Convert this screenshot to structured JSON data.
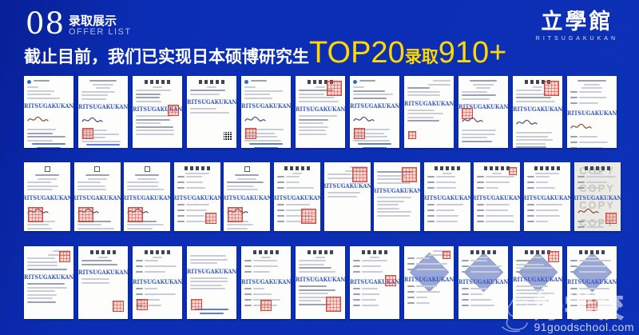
{
  "page": {
    "bg": "#0b2db3",
    "accent_yellow": "#ffd800",
    "card_watermark_color": "#3b5abd",
    "stamp_red": "#cc3b32"
  },
  "header": {
    "number": "08",
    "title_cn": "录取展示",
    "title_en": "OFFER LIST"
  },
  "headline": {
    "prefix": "截止目前，我们已实现日本硕博研究生",
    "highlight_top": "TOP20",
    "mid": "录取",
    "highlight_count": "910+"
  },
  "brand": {
    "name": "立學館",
    "romaji": "RITSUGAKUKAN"
  },
  "footer_watermark": {
    "brand": "好学校",
    "url": "91goodschool.com"
  },
  "cards": {
    "watermark": "RITSUGAKUKAN",
    "copy_text": "COPY",
    "rows": [
      [
        {
          "header": "logo",
          "sig": "red",
          "footer": "links",
          "lines": "normal"
        },
        {
          "header": "center",
          "sig": "dark",
          "stamp": "bl",
          "stampSize": "m",
          "footer": "links",
          "lines": "normal"
        },
        {
          "header": "title",
          "stamp": "mr",
          "stampSize": "m",
          "lines": "dense"
        },
        {
          "header": "title",
          "qr": true,
          "lines": "sparse"
        },
        {
          "header": "logo",
          "sig": "dark",
          "stamp": "bl",
          "stampSize": "m",
          "footer": "links",
          "lines": "normal"
        },
        {
          "header": "title",
          "stamp": "tr",
          "stampSize": "l",
          "lines": "dense"
        },
        {
          "header": "logo",
          "sig": "dark",
          "stamp": "bl",
          "stampSize": "m",
          "footer": "links",
          "lines": "normal"
        },
        {
          "header": "right",
          "stamp": "bl",
          "stampSize": "s",
          "lines": "normal"
        },
        {
          "header": "center",
          "sig": "dark",
          "stamp": "ml",
          "stampSize": "m",
          "lines": "normal"
        },
        {
          "header": "title",
          "sig": "dark",
          "stamp": "tr",
          "stampSize": "l",
          "lines": "dense"
        },
        {
          "header": "univ",
          "sig": "red",
          "lines": "table"
        }
      ],
      [
        {
          "header": "crest",
          "sig": "dark",
          "stamp": "bl",
          "stampSize": "l",
          "lines": "normal"
        },
        {
          "header": "crest",
          "sig": "dark",
          "stamp": "bl",
          "stampSize": "l",
          "lines": "normal"
        },
        {
          "header": "crest",
          "sig": "dark",
          "stamp": "bl",
          "stampSize": "l",
          "lines": "normal"
        },
        {
          "header": "title2",
          "stamp": "br",
          "stampSize": "m",
          "lines": "table"
        },
        {
          "header": "crest",
          "sig": "dark",
          "stamp": "bl",
          "stampSize": "l",
          "lines": "normal"
        },
        {
          "header": "title",
          "stamp": "br",
          "stampSize": "l",
          "lines": "table"
        },
        {
          "header": "right",
          "stamp": "tr",
          "stampSize": "l",
          "lines": "sparse"
        },
        {
          "header": "none",
          "stamp": "tr",
          "stampSize": "l",
          "lines": "dense"
        },
        {
          "header": "title",
          "lines": "table"
        },
        {
          "header": "title",
          "stamp": "tr",
          "stampSize": "s",
          "lines": "table"
        },
        {
          "header": "title2",
          "lines": "table"
        },
        {
          "header": "title",
          "copy": true,
          "sig": "red",
          "stamp": "br",
          "stampSize": "m",
          "lines": "table",
          "tint": "gray"
        }
      ],
      [
        {
          "header": "right",
          "stamp": "tr",
          "stampSize": "m",
          "lines": "dense"
        },
        {
          "header": "title",
          "stamp": "br",
          "stampSize": "m",
          "lines": "sparse"
        },
        {
          "header": "title",
          "stamp": "bl",
          "stampSize": "m",
          "lines": "table"
        },
        {
          "header": "none",
          "stamp": "bl",
          "stampSize": "m",
          "footer": "links",
          "lines": "normal"
        },
        {
          "header": "title",
          "stamp": "bc",
          "stampSize": "m",
          "lines": "table"
        },
        {
          "header": "title",
          "stamp": "br",
          "stampSize": "l",
          "lines": "dense"
        },
        {
          "header": "title",
          "stamp": "mr",
          "stampSize": "m",
          "lines": "table"
        },
        {
          "header": "right",
          "diamond": true,
          "stamp": "tr",
          "stampSize": "s",
          "lines": "table"
        },
        {
          "header": "title",
          "diamond": true,
          "lines": "table"
        },
        {
          "header": "title",
          "diamond": true,
          "stamp": "tr",
          "stampSize": "m",
          "lines": "dense"
        },
        {
          "header": "title",
          "diamond": true,
          "stamp": "bc",
          "stampSize": "m",
          "lines": "table"
        }
      ]
    ]
  }
}
